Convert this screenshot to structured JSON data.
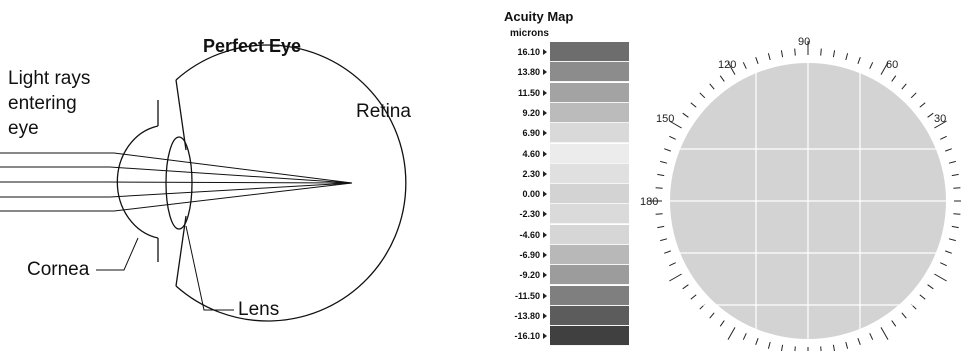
{
  "eye_diagram": {
    "title": "Perfect Eye",
    "labels": {
      "light_rays": [
        "Light rays",
        "entering",
        "eye"
      ],
      "retina": "Retina",
      "cornea": "Cornea",
      "lens": "Lens"
    }
  },
  "acuity_map": {
    "title": "Acuity Map",
    "unit": "microns",
    "legend": [
      {
        "value": "16.10",
        "color": "#6d6d6d"
      },
      {
        "value": "13.80",
        "color": "#8c8c8c"
      },
      {
        "value": "11.50",
        "color": "#a3a3a3"
      },
      {
        "value": "9.20",
        "color": "#bbbbbb"
      },
      {
        "value": "6.90",
        "color": "#d9d9d9"
      },
      {
        "value": "4.60",
        "color": "#ececec"
      },
      {
        "value": "2.30",
        "color": "#e0e0e0"
      },
      {
        "value": "0.00",
        "color": "#d3d3d3"
      },
      {
        "value": "-2.30",
        "color": "#dadada"
      },
      {
        "value": "-4.60",
        "color": "#d6d6d6"
      },
      {
        "value": "-6.90",
        "color": "#b8b8b8"
      },
      {
        "value": "-9.20",
        "color": "#9c9c9c"
      },
      {
        "value": "-11.50",
        "color": "#7f7f7f"
      },
      {
        "value": "-13.80",
        "color": "#5c5c5c"
      },
      {
        "value": "-16.10",
        "color": "#404040"
      }
    ],
    "map_fill_color": "#d3d3d3",
    "degree_labels": [
      "90",
      "120",
      "60",
      "150",
      "30",
      "180"
    ]
  }
}
